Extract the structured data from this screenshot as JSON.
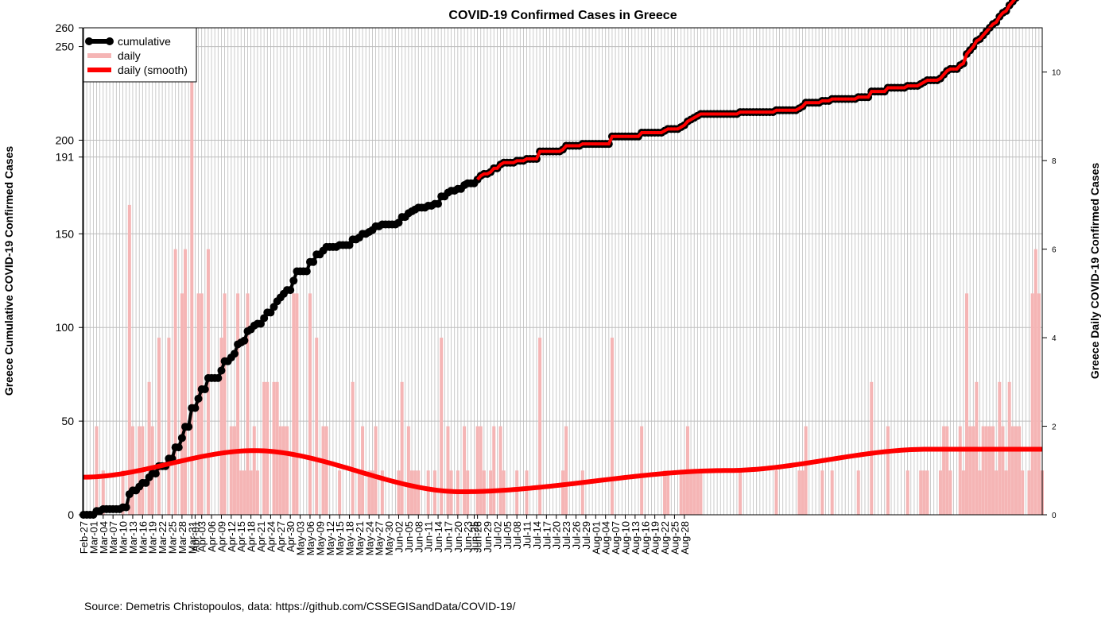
{
  "chart_data": {
    "type": "bar+line",
    "title": "COVID-19 Confirmed Cases in Greece",
    "ylabel_left": "Greece Cumulative COVID-19 Confirmed Cases",
    "ylabel_right": "Greece Daily COVID-19 Confirmed Cases",
    "source": "Source: Demetris Christopoulos, data: https://github.com/CSSEGISandData/COVID-19/",
    "start_date": "2020-02-27",
    "ylim_left": [
      0,
      260
    ],
    "ylim_right": [
      0,
      11
    ],
    "yticks_left": [
      0,
      50,
      100,
      150,
      191,
      200,
      250,
      260
    ],
    "yticks_right": [
      0,
      2,
      4,
      6,
      8,
      10
    ],
    "x_tick_labels": [
      "Feb-27",
      "Mar-01",
      "Mar-04",
      "Mar-07",
      "Mar-10",
      "Mar-13",
      "Mar-16",
      "Mar-19",
      "Mar-22",
      "Mar-25",
      "Mar-28",
      "Mar-31",
      "Apr-01",
      "Apr-03",
      "Apr-06",
      "Apr-09",
      "Apr-12",
      "Apr-15",
      "Apr-18",
      "Apr-21",
      "Apr-24",
      "Apr-27",
      "Apr-30",
      "May-03",
      "May-06",
      "May-09",
      "May-12",
      "May-15",
      "May-18",
      "May-21",
      "May-24",
      "May-27",
      "May-30",
      "Jun-02",
      "Jun-05",
      "Jun-08",
      "Jun-11",
      "Jun-14",
      "Jun-17",
      "Jun-20",
      "Jun-23",
      "Jun-25",
      "Jun-26",
      "Jun-29",
      "Jul-02",
      "Jul-05",
      "Jul-08",
      "Jul-11",
      "Jul-14",
      "Jul-17",
      "Jul-20",
      "Jul-23",
      "Jul-26",
      "Jul-29",
      "Aug-01",
      "Aug-04",
      "Aug-07",
      "Aug-10",
      "Aug-13",
      "Aug-16",
      "Aug-19",
      "Aug-22",
      "Aug-25",
      "Aug-28"
    ],
    "grid": true,
    "legend_position": "top-left",
    "legend": [
      {
        "name": "cumulative",
        "color": "#000000"
      },
      {
        "name": "daily",
        "color": "#f5b5b5"
      },
      {
        "name": "daily (smooth)",
        "color": "#ff0000"
      }
    ],
    "colors": {
      "cumulative": "#000000",
      "daily": "#f5b5b5",
      "smooth": "#ff0000",
      "grid": "#bdbdbd"
    },
    "daily": [
      0,
      0,
      0,
      0,
      2,
      0,
      1,
      0,
      0,
      0,
      0,
      0,
      1,
      0,
      7,
      2,
      0,
      2,
      2,
      0,
      3,
      2,
      0,
      4,
      0,
      0,
      4,
      0,
      6,
      0,
      5,
      6,
      0,
      10,
      0,
      5,
      5,
      0,
      6,
      0,
      0,
      0,
      4,
      5,
      0,
      2,
      2,
      5,
      1,
      1,
      5,
      1,
      2,
      1,
      0,
      3,
      3,
      0,
      3,
      3,
      2,
      2,
      2,
      0,
      5,
      5,
      0,
      0,
      0,
      5,
      0,
      4,
      0,
      2,
      2,
      0,
      0,
      0,
      1,
      0,
      0,
      0,
      3,
      0,
      1,
      2,
      0,
      1,
      1,
      2,
      0,
      1,
      0,
      0,
      0,
      0,
      1,
      3,
      0,
      2,
      1,
      1,
      1,
      0,
      0,
      1,
      0,
      1,
      0,
      4,
      0,
      2,
      1,
      0,
      1,
      0,
      2,
      1,
      0,
      0,
      2,
      2,
      1,
      0,
      1,
      2,
      0,
      2,
      1,
      0,
      0,
      0,
      1,
      0,
      0,
      1,
      0,
      0,
      0,
      4,
      0,
      0,
      0,
      0,
      0,
      0,
      1,
      2,
      0,
      0,
      0,
      0,
      1,
      0,
      0,
      0,
      0,
      0,
      0,
      0,
      0,
      4,
      0,
      0,
      0,
      0,
      0,
      0,
      0,
      0,
      2,
      0,
      0,
      0,
      0,
      0,
      0,
      1,
      1,
      0,
      0,
      0,
      1,
      1,
      2,
      1,
      1,
      1,
      1,
      0,
      0,
      0,
      0,
      0,
      0,
      0,
      0,
      0,
      0,
      0,
      1,
      0,
      0,
      0,
      0,
      0,
      0,
      0,
      0,
      0,
      0,
      1,
      0,
      0,
      0,
      0,
      0,
      0,
      1,
      1,
      2,
      0,
      0,
      0,
      0,
      1,
      0,
      0,
      1,
      0,
      0,
      0,
      0,
      0,
      0,
      0,
      1,
      0,
      0,
      0,
      3,
      0,
      0,
      0,
      0,
      2,
      0,
      0,
      0,
      0,
      0,
      1,
      0,
      0,
      0,
      1,
      1,
      1,
      0,
      0,
      0,
      1,
      2,
      2,
      1,
      0,
      0,
      2,
      1,
      5,
      2,
      2,
      3,
      1,
      2,
      2,
      2,
      2,
      1,
      3,
      2,
      1,
      3,
      2,
      2,
      2,
      1,
      0,
      1,
      5,
      6,
      5,
      1
    ],
    "smooth": [
      [
        0,
        0.85
      ],
      [
        52,
        1.45
      ],
      [
        115,
        0.52
      ],
      [
        196,
        1.0
      ],
      [
        257,
        1.48
      ]
    ]
  }
}
